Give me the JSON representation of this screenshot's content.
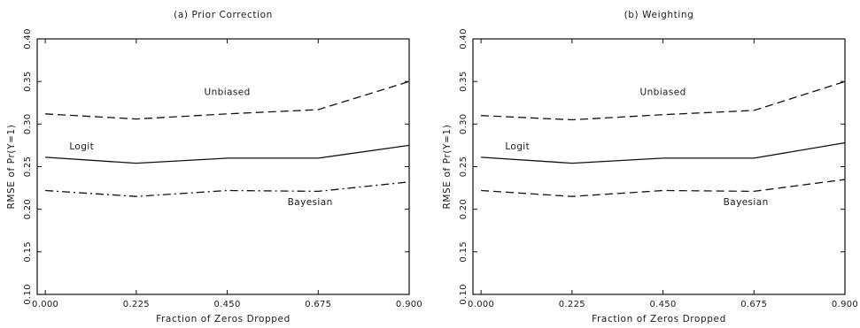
{
  "chart_data": [
    {
      "type": "line",
      "title": "(a) Prior Correction",
      "xlabel": "Fraction of Zeros Dropped",
      "ylabel": "RMSE of Pr(Y=1)",
      "x": [
        0.0,
        0.225,
        0.45,
        0.675,
        0.9
      ],
      "x_tick_labels": [
        "0.000",
        "0.225",
        "0.450",
        "0.675",
        "0.900"
      ],
      "y_tick_labels": [
        "0.10",
        "0.15",
        "0.20",
        "0.25",
        "0.30",
        "0.35",
        "0.40"
      ],
      "y_ticks": [
        0.1,
        0.15,
        0.2,
        0.25,
        0.3,
        0.35,
        0.4
      ],
      "xlim": [
        -0.02,
        0.9
      ],
      "ylim": [
        0.1,
        0.4
      ],
      "grid": false,
      "series": [
        {
          "name": "Unbiased",
          "values": [
            0.312,
            0.306,
            0.312,
            0.317,
            0.35
          ],
          "line_style": "dashed",
          "label_x": 0.45,
          "label_y": 0.334
        },
        {
          "name": "Logit",
          "values": [
            0.261,
            0.254,
            0.26,
            0.26,
            0.275
          ],
          "line_style": "solid",
          "label_x": 0.09,
          "label_y": 0.27
        },
        {
          "name": "Bayesian",
          "values": [
            0.222,
            0.215,
            0.222,
            0.221,
            0.232
          ],
          "line_style": "dashdot",
          "label_x": 0.655,
          "label_y": 0.205
        }
      ]
    },
    {
      "type": "line",
      "title": "(b) Weighting",
      "xlabel": "Fraction of Zeros Dropped",
      "ylabel": "RMSE of Pr(Y=1)",
      "x": [
        0.0,
        0.225,
        0.45,
        0.675,
        0.9
      ],
      "x_tick_labels": [
        "0.000",
        "0.225",
        "0.450",
        "0.675",
        "0.900"
      ],
      "y_tick_labels": [
        "0.10",
        "0.15",
        "0.20",
        "0.25",
        "0.30",
        "0.35",
        "0.40"
      ],
      "y_ticks": [
        0.1,
        0.15,
        0.2,
        0.25,
        0.3,
        0.35,
        0.4
      ],
      "xlim": [
        -0.02,
        0.9
      ],
      "ylim": [
        0.1,
        0.4
      ],
      "grid": false,
      "series": [
        {
          "name": "Unbiased",
          "values": [
            0.31,
            0.305,
            0.311,
            0.316,
            0.35
          ],
          "line_style": "dashed",
          "label_x": 0.45,
          "label_y": 0.334
        },
        {
          "name": "Logit",
          "values": [
            0.261,
            0.254,
            0.26,
            0.26,
            0.278
          ],
          "line_style": "solid",
          "label_x": 0.09,
          "label_y": 0.27
        },
        {
          "name": "Bayesian",
          "values": [
            0.222,
            0.215,
            0.222,
            0.221,
            0.235
          ],
          "line_style": "dashed",
          "label_x": 0.655,
          "label_y": 0.205
        }
      ]
    }
  ]
}
